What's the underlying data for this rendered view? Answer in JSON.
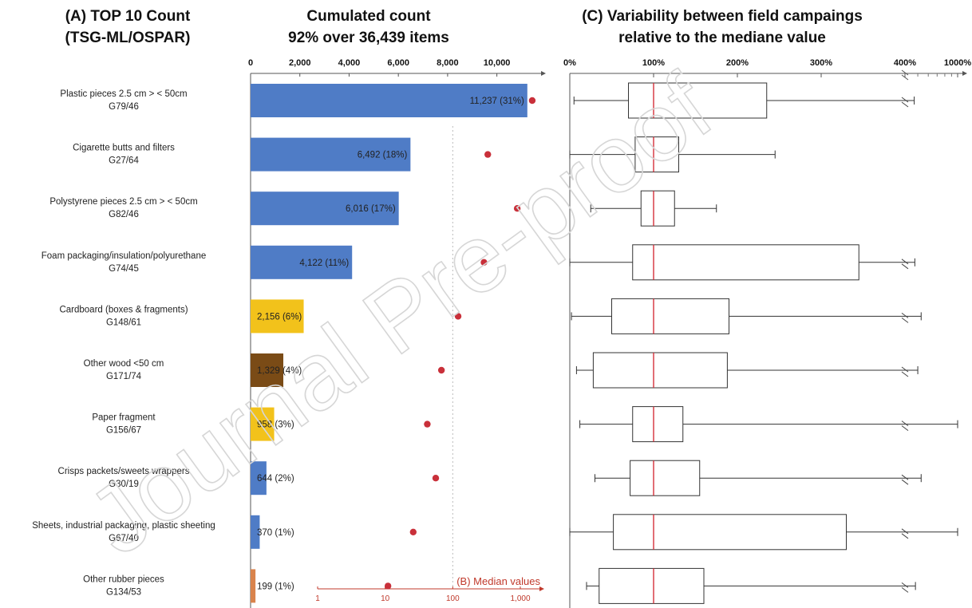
{
  "watermark": "Journal Pre-proof",
  "chart_data": [
    {
      "id": "A",
      "type": "table",
      "title_lines": [
        "(A) TOP 10 Count",
        "(TSG-ML/OSPAR)"
      ],
      "items": [
        {
          "name": "Plastic pieces 2.5 cm > < 50cm",
          "code": "G79/46"
        },
        {
          "name": "Cigarette butts and filters",
          "code": "G27/64"
        },
        {
          "name": "Polystyrene pieces 2.5 cm > < 50cm",
          "code": "G82/46"
        },
        {
          "name": "Foam packaging/insulation/polyurethane",
          "code": "G74/45"
        },
        {
          "name": "Cardboard (boxes & fragments)",
          "code": "G148/61"
        },
        {
          "name": "Other wood <50 cm",
          "code": "G171/74"
        },
        {
          "name": "Paper fragment",
          "code": "G156/67"
        },
        {
          "name": "Crisps packets/sweets wrappers",
          "code": "G30/19"
        },
        {
          "name": "Sheets, industrial packaging, plastic sheeting",
          "code": "G67/40"
        },
        {
          "name": "Other rubber pieces",
          "code": "G134/53"
        }
      ]
    },
    {
      "id": "count",
      "type": "bar",
      "orientation": "horizontal",
      "title_lines": [
        "Cumulated count",
        "92% over 36,439 items"
      ],
      "xlim": [
        0,
        11600
      ],
      "xticks": [
        0,
        2000,
        4000,
        6000,
        8000,
        10000
      ],
      "xtick_labels": [
        "0",
        "2,000",
        "4,000",
        "6,000",
        "8,000",
        "10,000"
      ],
      "values": [
        11237,
        6492,
        6016,
        4122,
        2156,
        1329,
        958,
        644,
        370,
        199
      ],
      "labels": [
        "11,237 (31%)",
        "6,492 (18%)",
        "6,016 (17%)",
        "4,122 (11%)",
        "2,156 (6%)",
        "1,329 (4%)",
        "958 (3%)",
        "644 (2%)",
        "370 (1%)",
        "199 (1%)"
      ],
      "colors": [
        "#4f7cc6",
        "#4f7cc6",
        "#4f7cc6",
        "#4f7cc6",
        "#f2c21b",
        "#7a4b16",
        "#f2c21b",
        "#4f7cc6",
        "#4f7cc6",
        "#d9834c"
      ]
    },
    {
      "id": "B",
      "type": "scatter",
      "title": "(B) Median values",
      "scale": "log",
      "xlim": [
        1,
        1000
      ],
      "xticks": [
        1,
        10,
        100,
        1000
      ],
      "xtick_labels": [
        "1",
        "10",
        "100",
        "1,000"
      ],
      "color": "#c9303a",
      "medians": [
        1500,
        330,
        900,
        290,
        120,
        68,
        42,
        56,
        26,
        11
      ]
    },
    {
      "id": "C",
      "type": "boxplot",
      "title_lines": [
        "(C) Variability between field campaings",
        "relative to the mediane value"
      ],
      "units": "% of median",
      "xticks": [
        0,
        100,
        200,
        300,
        400,
        1000
      ],
      "xtick_labels": [
        "0%",
        "100%",
        "200%",
        "300%",
        "400%",
        "1000%"
      ],
      "axis_break": 400,
      "median_color": "#d6303a",
      "boxes": [
        {
          "whisker_low": 5,
          "q1": 70,
          "median": 100,
          "q3": 235,
          "whisker_high": 470
        },
        {
          "whisker_low": 0,
          "q1": 78,
          "median": 100,
          "q3": 130,
          "whisker_high": 245
        },
        {
          "whisker_low": 25,
          "q1": 85,
          "median": 100,
          "q3": 125,
          "whisker_high": 175
        },
        {
          "whisker_low": 0,
          "q1": 75,
          "median": 100,
          "q3": 345,
          "whisker_high": 475
        },
        {
          "whisker_low": 2,
          "q1": 50,
          "median": 100,
          "q3": 190,
          "whisker_high": 530
        },
        {
          "whisker_low": 8,
          "q1": 28,
          "median": 100,
          "q3": 188,
          "whisker_high": 500
        },
        {
          "whisker_low": 12,
          "q1": 75,
          "median": 100,
          "q3": 135,
          "whisker_high": 1000
        },
        {
          "whisker_low": 30,
          "q1": 72,
          "median": 100,
          "q3": 155,
          "whisker_high": 530
        },
        {
          "whisker_low": 0,
          "q1": 52,
          "median": 100,
          "q3": 330,
          "whisker_high": 1000
        },
        {
          "whisker_low": 20,
          "q1": 35,
          "median": 100,
          "q3": 160,
          "whisker_high": 480
        }
      ]
    }
  ]
}
